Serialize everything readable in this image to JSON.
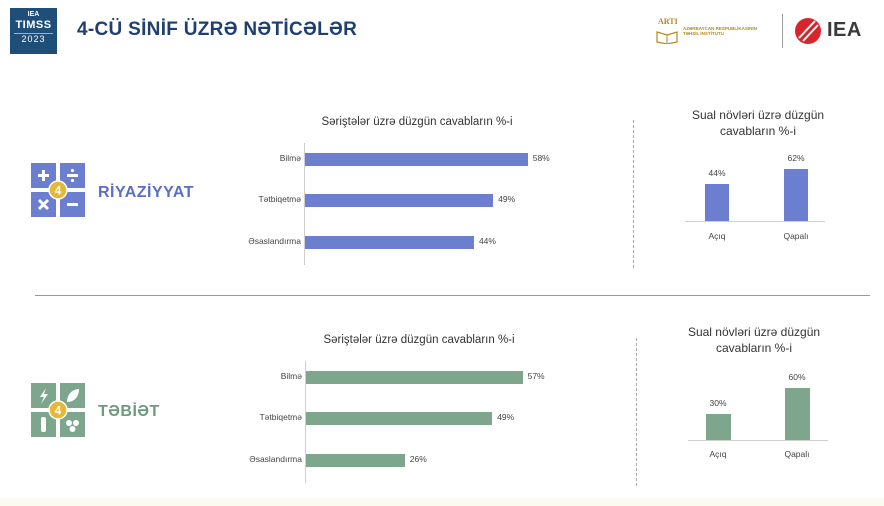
{
  "header": {
    "badge_iea": "IEA",
    "badge_timss": "TIMSS",
    "badge_year": "2023",
    "title": "4-CÜ SİNİF ÜZRƏ NƏTİCƏLƏR",
    "arti_word": "ARTI",
    "arti_text": "AZƏRBAYCAN RESPUBLİKASININ TƏHSİL İNSTİTUTU",
    "iea_logo_text": "IEA"
  },
  "colors": {
    "title": "#1f3f6e",
    "math": "#6b7ecf",
    "math_label": "#5a6fc2",
    "science": "#7ea68c",
    "science_label": "#6f9a7e"
  },
  "chart_data": [
    {
      "subject": "RİYAZİYYAT",
      "type": "bar",
      "orientation": "horizontal",
      "title": "Səriştələr üzrə düzgün cavabların %-i",
      "categories": [
        "Bilmə",
        "Tətbiqetmə",
        "Əsaslandırma"
      ],
      "values": [
        58,
        49,
        44
      ],
      "value_labels": [
        "58%",
        "49%",
        "44%"
      ],
      "color": "#6b7ecf",
      "xlim": [
        0,
        70
      ]
    },
    {
      "subject": "RİYAZİYYAT",
      "type": "bar",
      "orientation": "vertical",
      "title": "Sual növləri üzrə düzgün cavabların %-i",
      "categories": [
        "Açıq",
        "Qapalı"
      ],
      "values": [
        44,
        62
      ],
      "value_labels": [
        "44%",
        "62%"
      ],
      "color": "#6b7ecf",
      "ylim": [
        0,
        75
      ]
    },
    {
      "subject": "TƏBİƏT",
      "type": "bar",
      "orientation": "horizontal",
      "title": "Səriştələr üzrə düzgün cavabların %-i",
      "categories": [
        "Bilmə",
        "Tətbiqetmə",
        "Əsaslandırma"
      ],
      "values": [
        57,
        49,
        26
      ],
      "value_labels": [
        "57%",
        "49%",
        "26%"
      ],
      "color": "#7ea68c",
      "xlim": [
        0,
        70
      ]
    },
    {
      "subject": "TƏBİƏT",
      "type": "bar",
      "orientation": "vertical",
      "title": "Sual növləri üzrə düzgün cavabların %-i",
      "categories": [
        "Açıq",
        "Qapalı"
      ],
      "values": [
        30,
        60
      ],
      "value_labels": [
        "30%",
        "60%"
      ],
      "color": "#7ea68c",
      "ylim": [
        0,
        75
      ]
    }
  ],
  "subjects": {
    "math_label": "RİYAZİYYAT",
    "science_label": "TƏBİƏT",
    "grade_badge": "4",
    "math_icons": [
      "plus-icon",
      "divide-icon",
      "multiply-icon",
      "minus-icon"
    ],
    "science_icons": [
      "lightning-icon",
      "leaf-icon",
      "test-tube-icon",
      "cluster-icon"
    ]
  }
}
